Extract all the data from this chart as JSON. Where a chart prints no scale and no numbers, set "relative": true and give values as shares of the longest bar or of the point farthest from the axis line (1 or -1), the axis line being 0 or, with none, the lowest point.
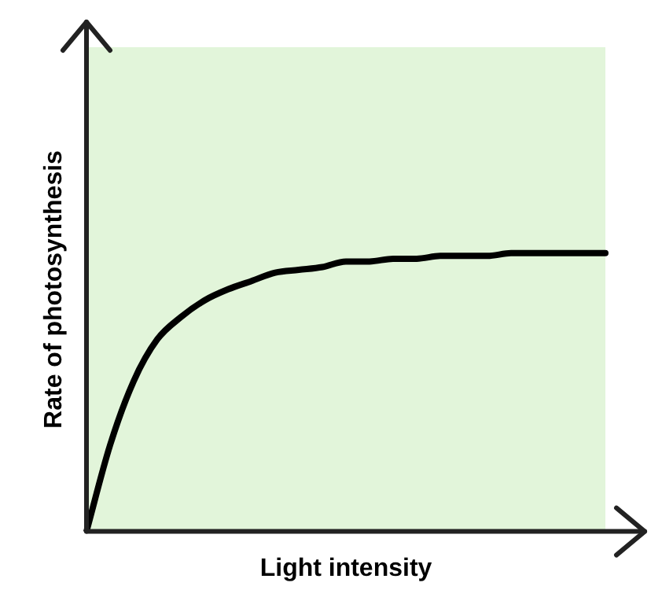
{
  "chart_data": {
    "type": "line",
    "xlabel": "Light intensity",
    "ylabel": "Rate of photosynthesis",
    "relative": true,
    "marker": "none",
    "line_style": "solid",
    "grid": false,
    "legend": false,
    "tick_labels": false,
    "categories": [
      null,
      null,
      null,
      null,
      null,
      null,
      null,
      null,
      null,
      null,
      null,
      null,
      null,
      null,
      null,
      null,
      null,
      null,
      null,
      null,
      null,
      null,
      null
    ],
    "series": [
      {
        "color": "#000000",
        "values": [
          0,
          0.31,
          0.54,
          0.69,
          0.77,
          0.83,
          0.87,
          0.9,
          0.93,
          0.94,
          0.95,
          0.97,
          0.97,
          0.98,
          0.98,
          0.99,
          0.99,
          0.99,
          1,
          1,
          1,
          1,
          1
        ]
      }
    ]
  }
}
